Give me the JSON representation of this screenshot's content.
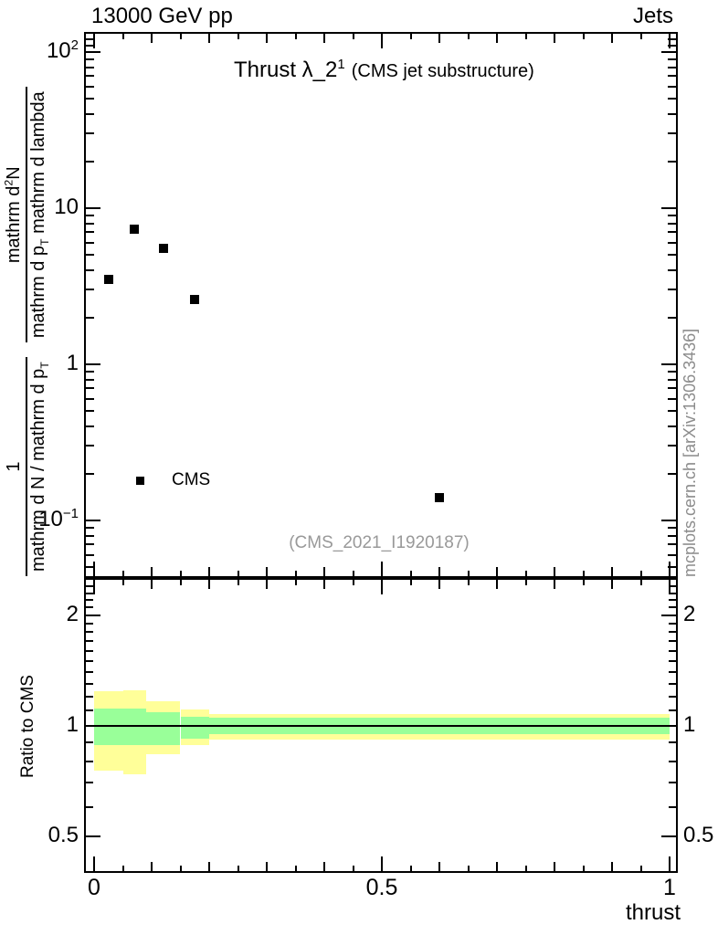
{
  "header": {
    "left": "13000 GeV pp",
    "right": "Jets"
  },
  "title": {
    "text": "Thrust λ_2",
    "sup": "1",
    "suffix": "(CMS jet substructure)"
  },
  "watermark": "(CMS_2021_I1920187)",
  "side_note": "mcplots.cern.ch [arXiv:1306.3436]",
  "legend": {
    "label": "CMS",
    "marker": "black-filled-square"
  },
  "colors": {
    "marker": "#000000",
    "band_yellow": "#ffff99",
    "band_green": "#99ff99",
    "frame": "#000000",
    "gray_text": "#999999",
    "side_note_gray": "#8c8c8c"
  },
  "ylabel": {
    "frac1": {
      "num": "1",
      "den_pre": "mathrm d N / mathrm d p",
      "den_sub": "T"
    },
    "frac2": {
      "num_pre": "mathrm d",
      "num_sup": "2",
      "num_post": "N",
      "den_pre": "mathrm d p",
      "den_sub": "T",
      "den_post": " mathrm d lambda"
    }
  },
  "axes": {
    "xlabel": "thrust",
    "ratio_ylabel": "Ratio to CMS",
    "x_tick_labels": [
      {
        "text": "0",
        "value": 0
      },
      {
        "text": "0.5",
        "value": 0.5
      },
      {
        "text": "1",
        "value": 1
      }
    ],
    "main_y_tick_labels": [
      {
        "base": "10",
        "sup": "2",
        "value": 100
      },
      {
        "base": "10",
        "value": 10
      },
      {
        "base": "1",
        "value": 1
      },
      {
        "base": "10",
        "sup": "−1",
        "value": 0.1
      }
    ],
    "ratio_y_tick_labels": [
      {
        "text": "2",
        "value": 2
      },
      {
        "text": "1",
        "value": 1
      },
      {
        "text": "0.5",
        "value": 0.5
      }
    ]
  },
  "chart_data": [
    {
      "type": "scatter",
      "panel": "main",
      "title": "Thrust λ_2^1 (CMS jet substructure)",
      "xlabel": "thrust",
      "ylabel": "1/(mathrm dN/mathrm dp_T) mathrm d^2N/(mathrm dp_T mathrm d lambda)",
      "x_range": [
        0,
        1
      ],
      "y_range_log": [
        0.045,
        130
      ],
      "y_scale": "log",
      "grid": false,
      "series": [
        {
          "name": "CMS",
          "marker": "filled-square",
          "x": [
            0.025,
            0.07,
            0.12,
            0.175,
            0.6
          ],
          "y": [
            3.5,
            7.3,
            5.5,
            2.6,
            0.14
          ]
        }
      ]
    },
    {
      "type": "band",
      "panel": "ratio",
      "ylabel": "Ratio to CMS",
      "y_range_log": [
        0.4,
        2.5
      ],
      "y_scale": "log",
      "reference_line": 1,
      "bins": [
        {
          "x": [
            0.0,
            0.05
          ],
          "yellow": [
            0.755,
            1.24
          ],
          "green": [
            0.885,
            1.115
          ]
        },
        {
          "x": [
            0.05,
            0.09
          ],
          "yellow": [
            0.74,
            1.25
          ],
          "green": [
            0.885,
            1.115
          ]
        },
        {
          "x": [
            0.09,
            0.15
          ],
          "yellow": [
            0.835,
            1.165
          ],
          "green": [
            0.885,
            1.09
          ]
        },
        {
          "x": [
            0.15,
            0.2
          ],
          "yellow": [
            0.885,
            1.11
          ],
          "green": [
            0.925,
            1.06
          ]
        },
        {
          "x": [
            0.2,
            1.0
          ],
          "yellow": [
            0.915,
            1.075
          ],
          "green": [
            0.95,
            1.05
          ]
        }
      ]
    }
  ]
}
